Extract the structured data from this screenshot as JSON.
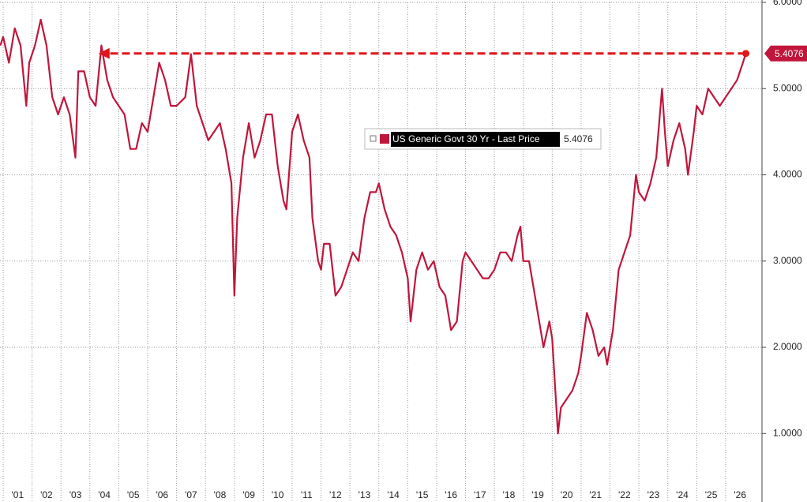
{
  "chart_data": {
    "type": "line",
    "series": [
      {
        "name": "US Generic Govt 30 Yr - Last Price",
        "color": "#c0163c",
        "x": [
          2000.9,
          2001.0,
          2001.2,
          2001.4,
          2001.6,
          2001.8,
          2001.9,
          2002.1,
          2002.3,
          2002.5,
          2002.7,
          2002.9,
          2003.1,
          2003.3,
          2003.5,
          2003.6,
          2003.8,
          2004.0,
          2004.2,
          2004.4,
          2004.6,
          2004.8,
          2005.0,
          2005.2,
          2005.4,
          2005.6,
          2005.8,
          2006.0,
          2006.2,
          2006.4,
          2006.6,
          2006.8,
          2007.0,
          2007.3,
          2007.5,
          2007.7,
          2007.9,
          2008.1,
          2008.3,
          2008.5,
          2008.7,
          2008.9,
          2009.0,
          2009.1,
          2009.3,
          2009.5,
          2009.7,
          2009.9,
          2010.1,
          2010.3,
          2010.5,
          2010.7,
          2010.8,
          2011.0,
          2011.2,
          2011.4,
          2011.6,
          2011.7,
          2011.9,
          2012.0,
          2012.1,
          2012.3,
          2012.5,
          2012.7,
          2012.9,
          2013.1,
          2013.3,
          2013.5,
          2013.7,
          2013.9,
          2014.0,
          2014.2,
          2014.4,
          2014.6,
          2014.8,
          2015.0,
          2015.1,
          2015.3,
          2015.5,
          2015.7,
          2015.9,
          2016.1,
          2016.3,
          2016.5,
          2016.7,
          2016.9,
          2017.0,
          2017.2,
          2017.4,
          2017.6,
          2017.8,
          2018.0,
          2018.2,
          2018.4,
          2018.6,
          2018.8,
          2018.9,
          2019.0,
          2019.2,
          2019.4,
          2019.6,
          2019.7,
          2019.9,
          2020.0,
          2020.2,
          2020.3,
          2020.5,
          2020.7,
          2020.9,
          2021.0,
          2021.2,
          2021.4,
          2021.6,
          2021.8,
          2021.9,
          2022.1,
          2022.3,
          2022.5,
          2022.7,
          2022.9,
          2023.0,
          2023.2,
          2023.4,
          2023.6,
          2023.8,
          2023.9,
          2024.0,
          2024.2,
          2024.4,
          2024.6,
          2024.7,
          2024.9,
          2025.0,
          2025.2,
          2025.4,
          2025.6,
          2025.8,
          2026.0,
          2026.2,
          2026.4,
          2026.6,
          2026.7
        ],
        "values": [
          5.5,
          5.6,
          5.3,
          5.7,
          5.5,
          4.8,
          5.3,
          5.5,
          5.8,
          5.5,
          4.9,
          4.7,
          4.9,
          4.7,
          4.2,
          5.2,
          5.2,
          4.9,
          4.8,
          5.5,
          5.1,
          4.9,
          4.8,
          4.7,
          4.3,
          4.3,
          4.6,
          4.5,
          4.9,
          5.3,
          5.1,
          4.8,
          4.8,
          4.9,
          5.4,
          4.8,
          4.6,
          4.4,
          4.5,
          4.6,
          4.3,
          3.9,
          2.6,
          3.5,
          4.2,
          4.6,
          4.2,
          4.4,
          4.7,
          4.7,
          4.1,
          3.7,
          3.6,
          4.5,
          4.7,
          4.4,
          4.2,
          3.5,
          3.0,
          2.9,
          3.2,
          3.2,
          2.6,
          2.7,
          2.9,
          3.1,
          3.0,
          3.5,
          3.8,
          3.8,
          3.9,
          3.6,
          3.4,
          3.3,
          3.1,
          2.8,
          2.3,
          2.9,
          3.1,
          2.9,
          3.0,
          2.7,
          2.6,
          2.2,
          2.3,
          3.0,
          3.1,
          3.0,
          2.9,
          2.8,
          2.8,
          2.9,
          3.1,
          3.1,
          3.0,
          3.3,
          3.4,
          3.0,
          3.0,
          2.6,
          2.2,
          2.0,
          2.3,
          2.1,
          1.0,
          1.3,
          1.4,
          1.5,
          1.7,
          1.9,
          2.4,
          2.2,
          1.9,
          2.0,
          1.8,
          2.2,
          2.9,
          3.1,
          3.3,
          4.0,
          3.8,
          3.7,
          3.9,
          4.2,
          5.0,
          4.5,
          4.1,
          4.4,
          4.6,
          4.3,
          4.0,
          4.5,
          4.8,
          4.7,
          5.0,
          4.9,
          4.8,
          4.9,
          5.0,
          5.1,
          5.3,
          5.4076
        ]
      }
    ],
    "xlim": [
      2000.89,
      2027.26
    ],
    "xticks": [
      {
        "value": 2001,
        "label": "'01"
      },
      {
        "value": 2002,
        "label": "'02"
      },
      {
        "value": 2003,
        "label": "'03"
      },
      {
        "value": 2004,
        "label": "'04"
      },
      {
        "value": 2005,
        "label": "'05"
      },
      {
        "value": 2006,
        "label": "'06"
      },
      {
        "value": 2007,
        "label": "'07"
      },
      {
        "value": 2008,
        "label": "'08"
      },
      {
        "value": 2009,
        "label": "'09"
      },
      {
        "value": 2010,
        "label": "'10"
      },
      {
        "value": 2011,
        "label": "'11"
      },
      {
        "value": 2012,
        "label": "'12"
      },
      {
        "value": 2013,
        "label": "'13"
      },
      {
        "value": 2014,
        "label": "'14"
      },
      {
        "value": 2015,
        "label": "'15"
      },
      {
        "value": 2016,
        "label": "'16"
      },
      {
        "value": 2017,
        "label": "'17"
      },
      {
        "value": 2018,
        "label": "'18"
      },
      {
        "value": 2019,
        "label": "'19"
      },
      {
        "value": 2020,
        "label": "'20"
      },
      {
        "value": 2021,
        "label": "'21"
      },
      {
        "value": 2022,
        "label": "'22"
      },
      {
        "value": 2023,
        "label": "'23"
      },
      {
        "value": 2024,
        "label": "'24"
      },
      {
        "value": 2025,
        "label": "'25"
      },
      {
        "value": 2026,
        "label": "'26"
      }
    ],
    "ylim": [
      0.49,
      6.0
    ],
    "yticks": [
      {
        "value": 1,
        "label": "1.0000"
      },
      {
        "value": 2,
        "label": "2.0000"
      },
      {
        "value": 3,
        "label": "3.0000"
      },
      {
        "value": 4,
        "label": "4.0000"
      },
      {
        "value": 5,
        "label": "5.0000"
      },
      {
        "value": 6,
        "label": "6.0000"
      }
    ],
    "grid": true
  }
}
